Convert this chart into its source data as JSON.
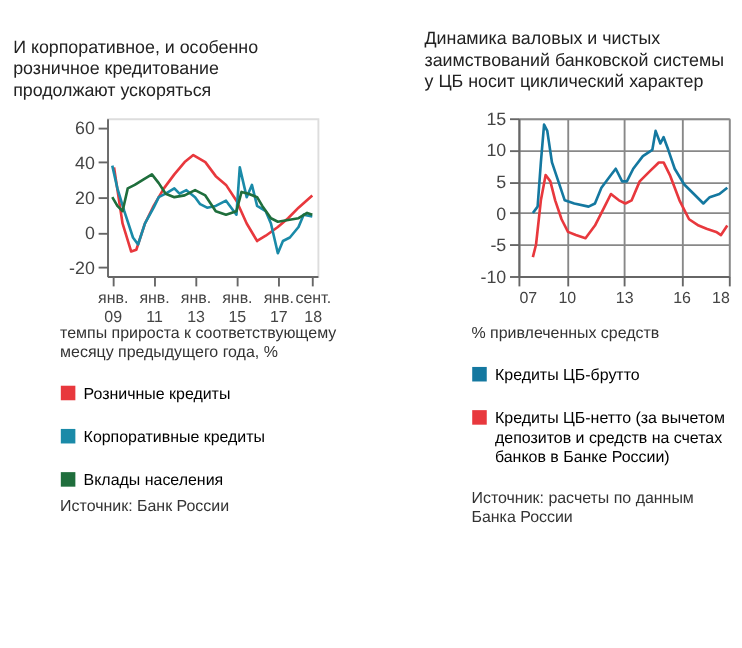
{
  "chart_data": [
    {
      "type": "line",
      "title": "И корпоративное, и особенно розничное кредитование продолжают ускоряться",
      "xlim": [
        "2008-10",
        "2018-12"
      ],
      "xticks": [
        {
          "value": "2009-01",
          "label": "янв. 09"
        },
        {
          "value": "2011-01",
          "label": "янв. 11"
        },
        {
          "value": "2013-01",
          "label": "янв. 13"
        },
        {
          "value": "2015-01",
          "label": "янв. 15"
        },
        {
          "value": "2017-01",
          "label": "янв. 17"
        },
        {
          "value": "2018-09",
          "label": "сент. 18"
        }
      ],
      "ylim": [
        -25,
        65
      ],
      "yticks": [
        -20,
        0,
        20,
        40,
        60
      ],
      "grid": false,
      "legend": "bottom",
      "series": [
        {
          "name": "Розничные кредиты",
          "color": "#e8383d",
          "x": [
            "2009-02",
            "2009-07",
            "2009-12",
            "2010-03",
            "2010-08",
            "2011-01",
            "2011-07",
            "2012-01",
            "2012-07",
            "2012-12",
            "2013-07",
            "2014-01",
            "2014-07",
            "2015-01",
            "2015-07",
            "2016-01",
            "2016-06",
            "2017-01",
            "2017-07",
            "2018-01",
            "2018-09"
          ],
          "values": [
            37,
            5,
            -11,
            -10,
            5,
            15,
            25,
            33,
            40,
            44,
            40,
            32,
            27,
            18,
            5,
            -5,
            -2,
            3,
            8,
            14,
            21
          ]
        },
        {
          "name": "Корпоративные кредиты",
          "color": "#1a8aa8",
          "x": [
            "2009-01",
            "2009-04",
            "2009-08",
            "2010-01",
            "2010-04",
            "2010-08",
            "2011-01",
            "2011-04",
            "2011-08",
            "2012-01",
            "2012-04",
            "2012-08",
            "2013-01",
            "2013-04",
            "2013-08",
            "2014-01",
            "2014-07",
            "2015-01",
            "2015-03",
            "2015-07",
            "2015-10",
            "2016-01",
            "2016-06",
            "2016-09",
            "2017-01",
            "2017-04",
            "2017-08",
            "2018-01",
            "2018-04",
            "2018-09"
          ],
          "values": [
            38,
            25,
            12,
            -3,
            -7,
            5,
            14,
            20,
            22,
            25,
            22,
            24,
            20,
            16,
            14,
            15,
            18,
            10,
            37,
            20,
            27,
            15,
            12,
            5,
            -12,
            -5,
            -3,
            3,
            10,
            9
          ]
        },
        {
          "name": "Вклады населения",
          "color": "#1f6e3c",
          "x": [
            "2009-01",
            "2009-04",
            "2009-07",
            "2009-10",
            "2010-02",
            "2010-07",
            "2010-12",
            "2011-04",
            "2011-08",
            "2012-01",
            "2012-07",
            "2013-01",
            "2013-07",
            "2014-01",
            "2014-07",
            "2015-01",
            "2015-04",
            "2015-08",
            "2016-01",
            "2016-04",
            "2016-09",
            "2017-01",
            "2017-07",
            "2018-01",
            "2018-06",
            "2018-09"
          ],
          "values": [
            20,
            15,
            12,
            25,
            27,
            30,
            33,
            28,
            22,
            20,
            21,
            24,
            21,
            12,
            10,
            12,
            23,
            22,
            20,
            15,
            8,
            6,
            7,
            8,
            11,
            10
          ]
        }
      ],
      "annotations": [
        "темпы прироста к соответствующему месяцу предыдущего года, %",
        "Источник: Банк России"
      ]
    },
    {
      "type": "line",
      "title": "Динамика валовых и чистых заимствований банковской системы у ЦБ носит циклический характер",
      "xlim": [
        "2007-07",
        "2018-07"
      ],
      "xticks": [
        {
          "value": "2007-07",
          "label": "07"
        },
        {
          "value": "2010-01",
          "label": "10"
        },
        {
          "value": "2013-01",
          "label": "13"
        },
        {
          "value": "2016-01",
          "label": "16"
        },
        {
          "value": "2018-07",
          "label": "18"
        }
      ],
      "ylim": [
        -10,
        15
      ],
      "yticks": [
        -10,
        -5,
        0,
        5,
        10,
        15
      ],
      "grid": true,
      "legend": "bottom",
      "series": [
        {
          "name": "Кредиты ЦБ-брутто",
          "color": "#1478a0",
          "x": [
            "2008-04",
            "2008-07",
            "2008-09",
            "2008-11",
            "2009-01",
            "2009-04",
            "2009-08",
            "2009-12",
            "2010-06",
            "2011-03",
            "2011-07",
            "2011-11",
            "2012-05",
            "2012-08",
            "2012-12",
            "2013-03",
            "2013-07",
            "2014-01",
            "2014-07",
            "2014-09",
            "2014-12",
            "2015-02",
            "2015-05",
            "2015-09",
            "2016-03",
            "2016-09",
            "2017-03",
            "2017-07",
            "2018-01",
            "2018-06"
          ],
          "values": [
            0,
            1,
            8,
            14,
            13,
            8,
            5,
            2,
            1.5,
            1,
            1.5,
            4,
            6,
            7,
            5,
            5,
            7,
            9,
            10,
            13,
            11,
            12,
            10,
            7,
            4.5,
            3,
            1.5,
            2.5,
            3,
            4
          ]
        },
        {
          "name": "Кредиты ЦБ-нетто (за вычетом депозитов и средств на счетах банков в Банке России)",
          "color": "#e8383d",
          "x": [
            "2008-04",
            "2008-06",
            "2008-09",
            "2008-12",
            "2009-03",
            "2009-06",
            "2009-10",
            "2010-02",
            "2010-07",
            "2011-01",
            "2011-07",
            "2012-01",
            "2012-05",
            "2012-10",
            "2013-02",
            "2013-06",
            "2013-11",
            "2014-05",
            "2014-11",
            "2015-02",
            "2015-06",
            "2015-12",
            "2016-06",
            "2016-12",
            "2017-05",
            "2017-11",
            "2018-02",
            "2018-06"
          ],
          "values": [
            -7,
            -5,
            2,
            6,
            5,
            2,
            -1,
            -3,
            -3.5,
            -4,
            -2,
            1,
            3,
            2,
            1.5,
            2,
            5,
            6.5,
            8,
            8,
            6,
            2,
            -1,
            -2,
            -2.5,
            -3,
            -3.5,
            -2
          ]
        }
      ],
      "annotations": [
        "% привлеченных средств",
        "Источник: расчеты по данным Банка России"
      ]
    }
  ]
}
